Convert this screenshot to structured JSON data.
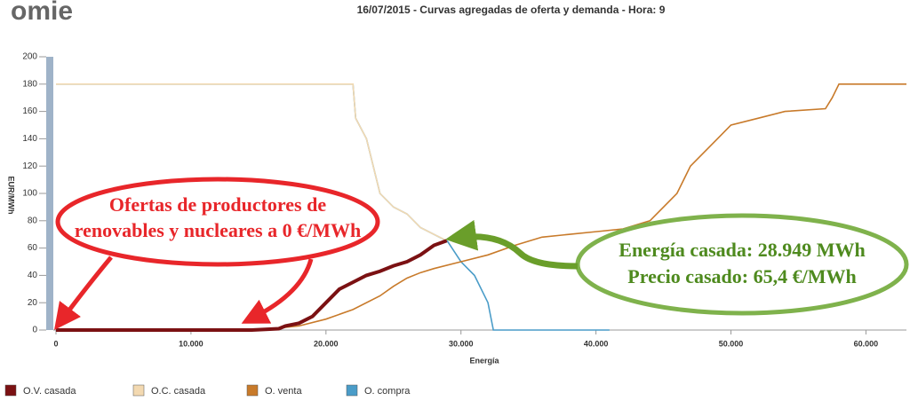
{
  "logo": "omie",
  "chart_data": {
    "type": "line",
    "title": "16/07/2015 - Curvas agregadas de oferta y demanda - Hora: 9",
    "x_label": "Energía",
    "y_label": "EUR/MWh",
    "xlim": [
      0,
      63000
    ],
    "ylim": [
      0,
      200
    ],
    "xticks": [
      0,
      {
        "value": 10000,
        "label": "10.000"
      },
      {
        "value": 20000,
        "label": "20.000"
      },
      {
        "value": 30000,
        "label": "30.000"
      },
      {
        "value": 40000,
        "label": "40.000"
      },
      {
        "value": 50000,
        "label": "50.000"
      },
      {
        "value": 60000,
        "label": "60.000"
      }
    ],
    "yticks": [
      0,
      20,
      40,
      60,
      80,
      100,
      120,
      140,
      160,
      180,
      200
    ],
    "series": [
      {
        "name": "O.V. casada",
        "color": "#7b1113",
        "x": [
          0,
          14500,
          16500,
          17000,
          18000,
          19000,
          20000,
          21000,
          22000,
          23000,
          24000,
          25000,
          26000,
          27000,
          28000,
          28949
        ],
        "values": [
          0,
          0,
          1,
          3,
          5,
          10,
          20,
          30,
          35,
          40,
          43,
          47,
          50,
          55,
          62,
          65.4
        ]
      },
      {
        "name": "O.C. casada",
        "color": "#f3d9b1",
        "x": [
          0,
          22000,
          22200,
          23000,
          23500,
          24000,
          25000,
          26000,
          27000,
          28000,
          28949
        ],
        "values": [
          180,
          180,
          155,
          140,
          120,
          100,
          90,
          85,
          75,
          70,
          65.4
        ]
      },
      {
        "name": "O. venta",
        "color": "#c87a2a",
        "x": [
          0,
          14500,
          16000,
          18000,
          20000,
          22000,
          24000,
          25000,
          26000,
          27000,
          28000,
          30000,
          32000,
          34000,
          36000,
          38000,
          40000,
          42000,
          44000,
          45000,
          46000,
          46500,
          47000,
          48000,
          49000,
          50000,
          52000,
          54000,
          57000,
          57500,
          58000,
          63000
        ],
        "values": [
          0,
          0,
          1,
          3,
          8,
          15,
          25,
          32,
          38,
          42,
          45,
          50,
          55,
          62,
          68,
          70,
          72,
          74,
          80,
          90,
          100,
          110,
          120,
          130,
          140,
          150,
          155,
          160,
          162,
          170,
          180,
          180
        ]
      },
      {
        "name": "O. compra",
        "color": "#4a9cc8",
        "x": [
          0,
          22000,
          22200,
          23000,
          23500,
          24000,
          25000,
          26000,
          27000,
          28000,
          29000,
          30000,
          31000,
          32000,
          32400,
          41000
        ],
        "values": [
          180,
          180,
          155,
          140,
          120,
          100,
          90,
          85,
          75,
          70,
          65,
          50,
          40,
          20,
          0,
          0
        ]
      }
    ],
    "annotations": [
      {
        "lines": [
          "Ofertas de productores de",
          "renovables y nucleares a 0 €/MWh"
        ]
      },
      {
        "lines": [
          "Energía casada: 28.949 MWh",
          "Precio casado: 65,4 €/MWh"
        ]
      }
    ]
  }
}
